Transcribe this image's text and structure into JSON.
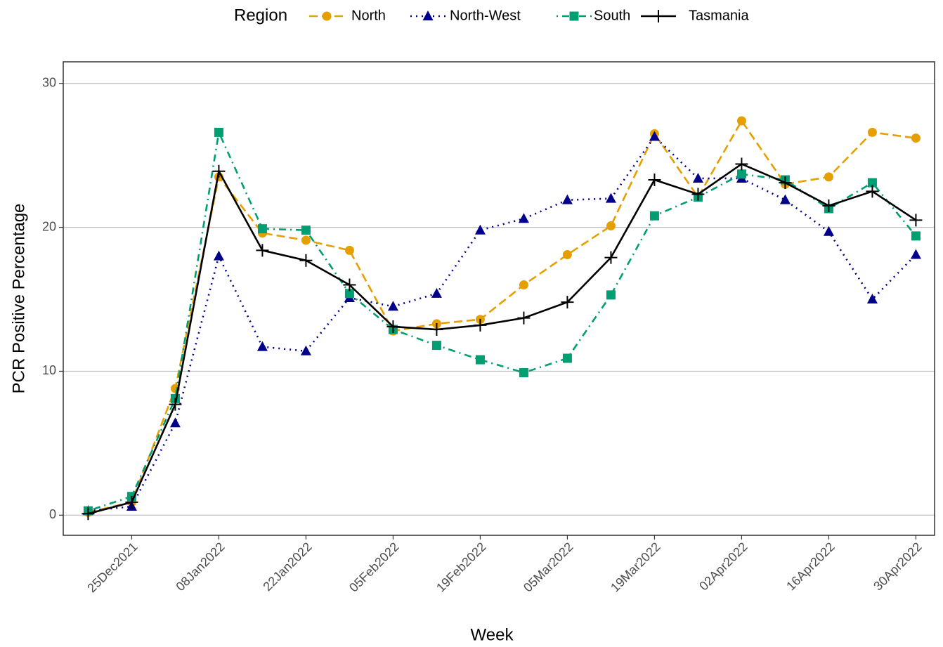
{
  "chart_data": {
    "type": "line",
    "x_label": "Week",
    "y_label": "PCR Positive Percentage",
    "legend_title": "Region",
    "x": [
      "2021-12-18",
      "2021-12-25",
      "2022-01-01",
      "2022-01-08",
      "2022-01-15",
      "2022-01-22",
      "2022-01-29",
      "2022-02-05",
      "2022-02-12",
      "2022-02-19",
      "2022-02-26",
      "2022-03-05",
      "2022-03-12",
      "2022-03-19",
      "2022-03-26",
      "2022-04-02",
      "2022-04-09",
      "2022-04-16",
      "2022-04-23",
      "2022-04-30"
    ],
    "xlim": [
      "2021-12-14",
      "2022-05-03"
    ],
    "xticks": [
      {
        "value": "2021-12-25",
        "label": "25Dec2021"
      },
      {
        "value": "2022-01-08",
        "label": "08Jan2022"
      },
      {
        "value": "2022-01-22",
        "label": "22Jan2022"
      },
      {
        "value": "2022-02-05",
        "label": "05Feb2022"
      },
      {
        "value": "2022-02-19",
        "label": "19Feb2022"
      },
      {
        "value": "2022-03-05",
        "label": "05Mar2022"
      },
      {
        "value": "2022-03-19",
        "label": "19Mar2022"
      },
      {
        "value": "2022-04-02",
        "label": "02Apr2022"
      },
      {
        "value": "2022-04-16",
        "label": "16Apr2022"
      },
      {
        "value": "2022-04-30",
        "label": "30Apr2022"
      }
    ],
    "ylim": [
      -1.4,
      31.5
    ],
    "yticks": [
      0,
      10,
      20,
      30
    ],
    "grid": true,
    "legend": "top",
    "series": [
      {
        "name": "North",
        "color": "#E69F00",
        "dash": "dashed",
        "marker": "circle",
        "values": [
          0.2,
          0.9,
          8.8,
          23.5,
          19.6,
          19.1,
          18.4,
          12.8,
          13.3,
          13.6,
          16.0,
          18.1,
          20.1,
          26.5,
          22.1,
          27.4,
          23.0,
          23.5,
          26.6,
          26.2
        ]
      },
      {
        "name": "North-West",
        "color": "#00008B",
        "dash": "dotted",
        "marker": "triangle",
        "values": [
          0.3,
          0.6,
          6.4,
          18.0,
          11.7,
          11.4,
          15.1,
          14.5,
          15.4,
          19.8,
          20.6,
          21.9,
          22.0,
          26.3,
          23.4,
          23.4,
          21.9,
          19.7,
          15.0,
          18.1
        ]
      },
      {
        "name": "South",
        "color": "#009E73",
        "dash": "dotdash",
        "marker": "square",
        "values": [
          0.3,
          1.3,
          8.1,
          26.6,
          19.9,
          19.8,
          15.4,
          12.9,
          11.8,
          10.8,
          9.9,
          10.9,
          15.3,
          20.8,
          22.1,
          23.7,
          23.3,
          21.3,
          23.1,
          19.4
        ]
      },
      {
        "name": "Tasmania",
        "color": "#000000",
        "dash": "solid",
        "marker": "plus",
        "values": [
          0.1,
          0.9,
          7.7,
          23.9,
          18.4,
          17.7,
          16.0,
          13.1,
          12.9,
          13.2,
          13.7,
          14.8,
          17.9,
          23.3,
          22.3,
          24.4,
          23.1,
          21.5,
          22.5,
          20.5
        ]
      }
    ]
  }
}
